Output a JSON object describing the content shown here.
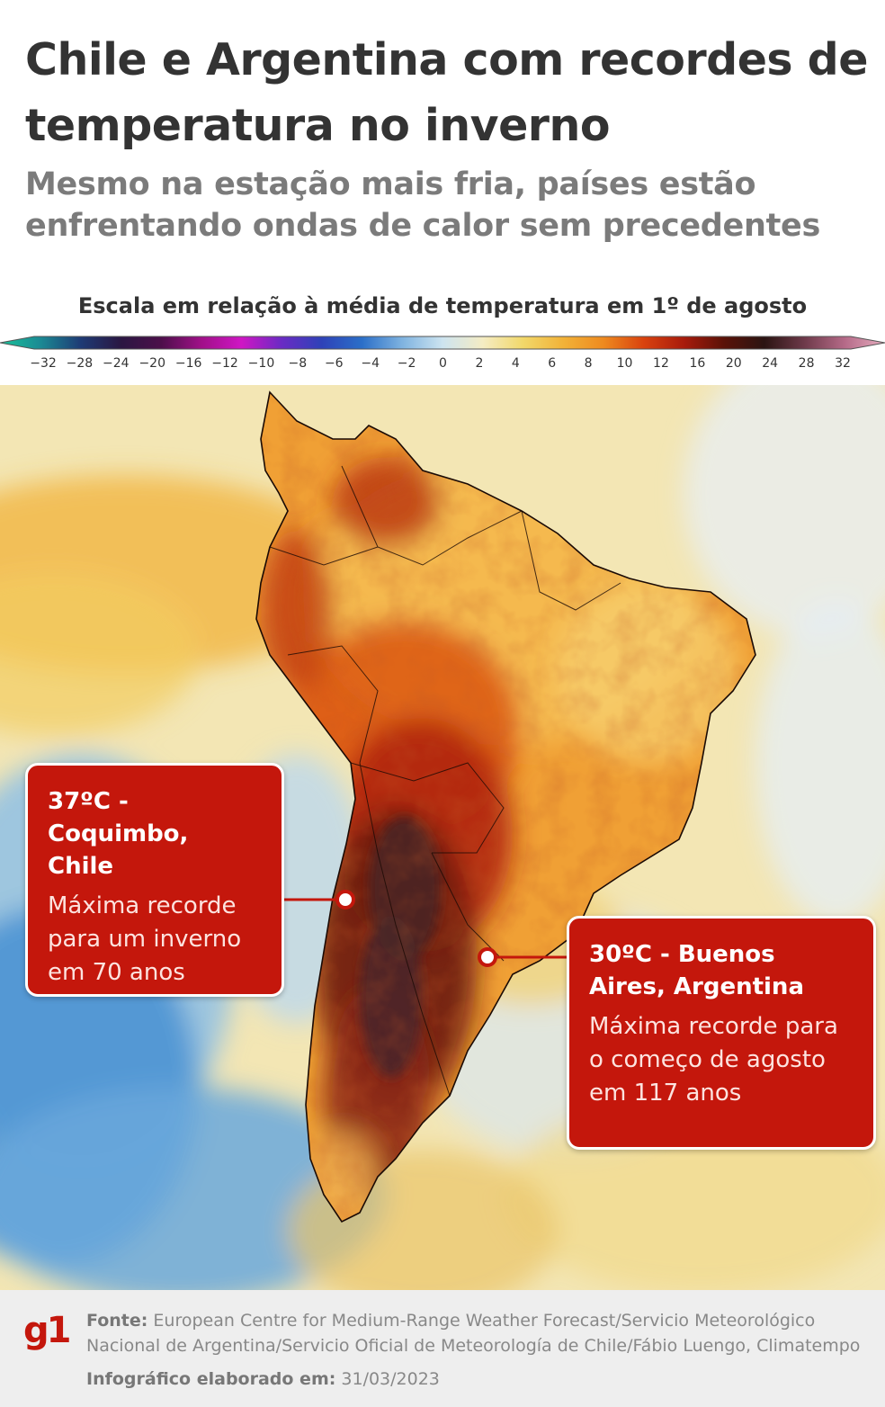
{
  "title": "Chile e Argentina com recordes de temperatura no inverno",
  "subtitle": "Mesmo na estação mais fria, países estão enfrentando ondas de calor sem precedentes",
  "scale": {
    "title": "Escala em relação à média de temperatura em 1º de agosto",
    "ticks": [
      "−32",
      "−28",
      "−24",
      "−20",
      "−16",
      "−12",
      "−10",
      "−8",
      "−6",
      "−4",
      "−2",
      "0",
      "2",
      "4",
      "6",
      "8",
      "10",
      "12",
      "16",
      "20",
      "24",
      "28",
      "32"
    ],
    "colors": [
      "#19c39a",
      "#1b8a94",
      "#1e3b75",
      "#2a1742",
      "#4c0f4a",
      "#a01088",
      "#cf16c4",
      "#6a2bc4",
      "#2e42b8",
      "#2b6fc8",
      "#7fb3e0",
      "#cde4f0",
      "#f4ecc4",
      "#f2d86a",
      "#f2b238",
      "#ee8a1f",
      "#d9420e",
      "#a81b0c",
      "#5a1208",
      "#2b1412",
      "#6e3a4a",
      "#b56a88",
      "#e7aec0"
    ]
  },
  "callouts": [
    {
      "heading": "37ºC - Coquimbo, Chile",
      "text": "Máxima recorde para um inverno em 70 anos"
    },
    {
      "heading": "30ºC - Buenos Aires, Argentina",
      "text": "Máxima recorde para o começo de agosto em 117 anos"
    }
  ],
  "footer": {
    "logo": "g1",
    "source_label": "Fonte:",
    "source_text": "European Centre for Medium-Range Weather Forecast/Servicio Meteorológico Nacional de Argentina/Servicio Oficial de Meteorología de Chile/Fábio Luengo, Climatempo",
    "made_label": "Infográfico elaborado em:",
    "made_date": "31/03/2023"
  }
}
